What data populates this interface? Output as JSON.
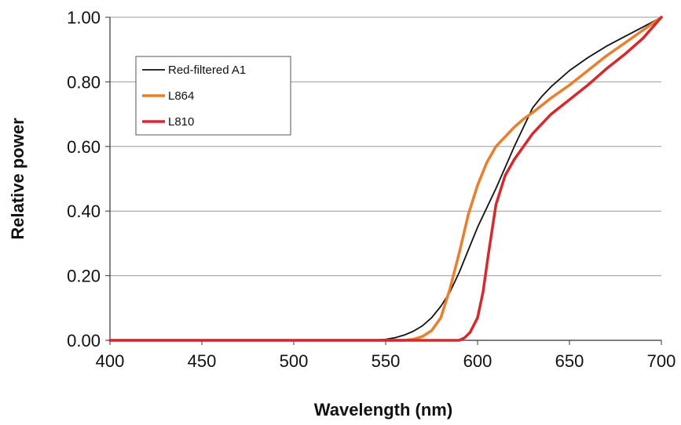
{
  "chart_data": {
    "type": "line",
    "title": "",
    "xlabel": "Wavelength (nm)",
    "ylabel": "Relative power",
    "xlim": [
      400,
      700
    ],
    "ylim": [
      0,
      1
    ],
    "xticks": [
      "400",
      "450",
      "500",
      "550",
      "600",
      "650",
      "700"
    ],
    "yticks": [
      "0.00",
      "0.20",
      "0.40",
      "0.60",
      "0.80",
      "1.00"
    ],
    "grid": "horizontal",
    "legend_position": "top-left",
    "series": [
      {
        "name": "Red-filtered A1",
        "color": "#111111",
        "x": [
          540,
          550,
          555,
          560,
          565,
          570,
          575,
          580,
          585,
          590,
          595,
          600,
          605,
          610,
          615,
          620,
          625,
          630,
          635,
          640,
          650,
          660,
          670,
          680,
          690,
          700
        ],
        "y": [
          0.0,
          0.003,
          0.008,
          0.016,
          0.028,
          0.045,
          0.07,
          0.105,
          0.15,
          0.21,
          0.28,
          0.35,
          0.41,
          0.47,
          0.535,
          0.6,
          0.66,
          0.72,
          0.755,
          0.785,
          0.835,
          0.875,
          0.91,
          0.94,
          0.97,
          1.0
        ]
      },
      {
        "name": "L864",
        "color": "#ec7d2c",
        "x": [
          400,
          560,
          565,
          570,
          575,
          580,
          585,
          590,
          595,
          600,
          605,
          610,
          615,
          620,
          625,
          630,
          640,
          650,
          660,
          670,
          680,
          690,
          700
        ],
        "y": [
          0.0,
          0.0,
          0.003,
          0.012,
          0.03,
          0.07,
          0.16,
          0.27,
          0.39,
          0.48,
          0.55,
          0.6,
          0.63,
          0.66,
          0.685,
          0.705,
          0.75,
          0.79,
          0.835,
          0.88,
          0.92,
          0.96,
          1.0
        ]
      },
      {
        "name": "L810",
        "color": "#d9272b",
        "x": [
          400,
          590,
          593,
          596,
          600,
          603,
          606,
          610,
          615,
          620,
          625,
          630,
          640,
          650,
          660,
          670,
          680,
          690,
          700
        ],
        "y": [
          0.0,
          0.0,
          0.008,
          0.025,
          0.07,
          0.15,
          0.27,
          0.42,
          0.51,
          0.56,
          0.6,
          0.64,
          0.7,
          0.745,
          0.79,
          0.84,
          0.885,
          0.935,
          1.0
        ]
      }
    ]
  }
}
